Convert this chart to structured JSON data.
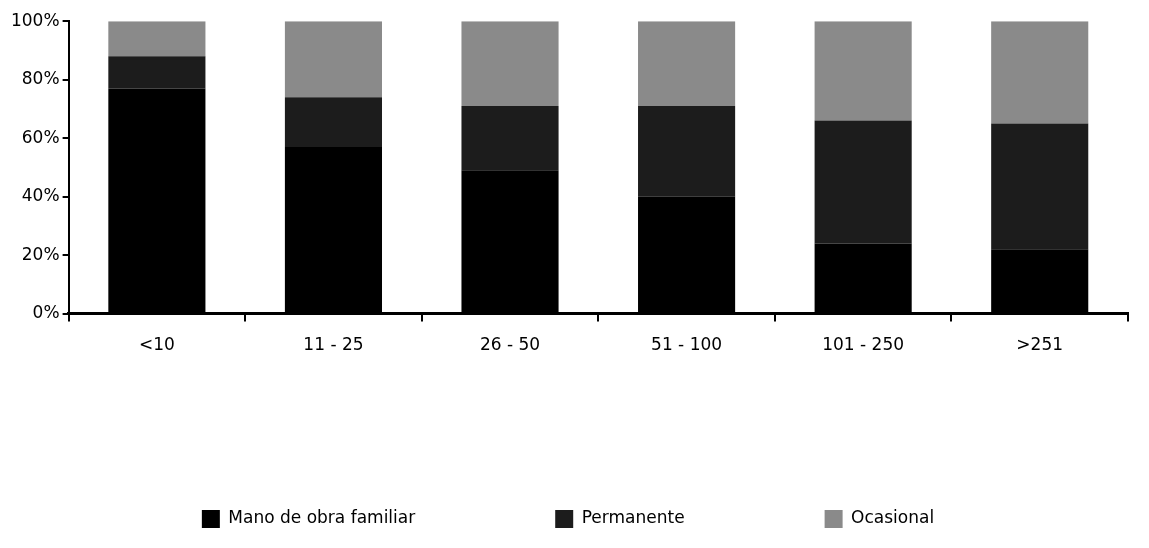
{
  "chart_data": {
    "type": "bar",
    "stacked": true,
    "categories": [
      "<10",
      "11 - 25",
      "26 - 50",
      "51 - 100",
      "101 - 250",
      ">251"
    ],
    "series": [
      {
        "name": "Mano de obra familiar",
        "color": "#000000",
        "values": [
          77,
          57,
          49,
          40,
          24,
          22
        ]
      },
      {
        "name": "Permanente",
        "color": "#1c1c1c",
        "values": [
          11,
          17,
          22,
          31,
          42,
          43
        ]
      },
      {
        "name": "Ocasional",
        "color": "#8a8a8a",
        "values": [
          12,
          26,
          29,
          29,
          34,
          35
        ]
      }
    ],
    "ylim": [
      0,
      100
    ],
    "yticks": [
      {
        "value": 0,
        "label": "0%"
      },
      {
        "value": 20,
        "label": "20%"
      },
      {
        "value": 40,
        "label": "40%"
      },
      {
        "value": 60,
        "label": "60%"
      },
      {
        "value": 80,
        "label": "80%"
      },
      {
        "value": 100,
        "label": "100%"
      }
    ],
    "grid": false,
    "legend": "bottom"
  }
}
